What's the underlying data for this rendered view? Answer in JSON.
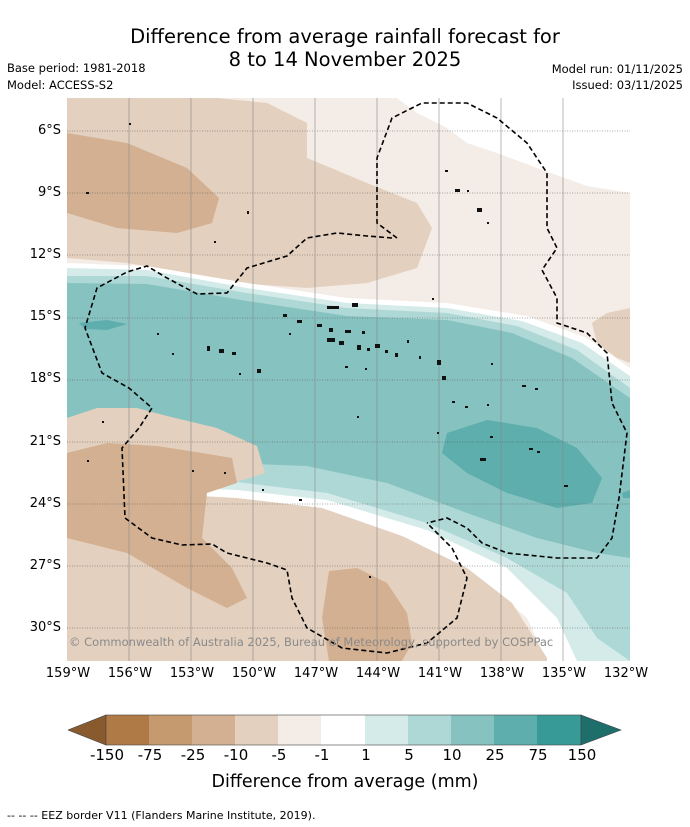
{
  "title": {
    "line1": "Difference from average rainfall forecast for",
    "line2": "8 to 14 November 2025"
  },
  "meta": {
    "base_period": "Base period: 1981-2018",
    "model": "Model: ACCESS-S2",
    "model_run": "Model run: 01/11/2025",
    "issued": "Issued: 03/11/2025"
  },
  "map": {
    "lat_labels": [
      "6°S",
      "9°S",
      "12°S",
      "15°S",
      "18°S",
      "21°S",
      "24°S",
      "27°S",
      "30°S"
    ],
    "lon_labels": [
      "159°W",
      "156°W",
      "153°W",
      "150°W",
      "147°W",
      "144°W",
      "141°W",
      "138°W",
      "135°W",
      "132°W"
    ],
    "copyright": "© Commonwealth of Australia 2025, Bureau of Meteorology, supported by COSPPac"
  },
  "colorbar": {
    "title": "Difference from average (mm)",
    "tick_labels": [
      "-150",
      "-75",
      "-25",
      "-10",
      "-5",
      "-1",
      "1",
      "5",
      "10",
      "25",
      "75",
      "150"
    ],
    "colors": {
      "lt150": "#8a5a2f",
      "n150": "#b07a46",
      "n75": "#c59a6e",
      "n25": "#d3b091",
      "n10": "#e3d0be",
      "n5": "#f4ece6",
      "n1": "#ffffff",
      "p1": "#d4ebea",
      "p5": "#aed8d6",
      "p10": "#86c2c0",
      "p25": "#5daeac",
      "p75": "#379a97",
      "gt150": "#1e6e6b"
    }
  },
  "legend": {
    "eez": "--  --  -- EEZ border V11 (Flanders Marine Institute, 2019)."
  }
}
